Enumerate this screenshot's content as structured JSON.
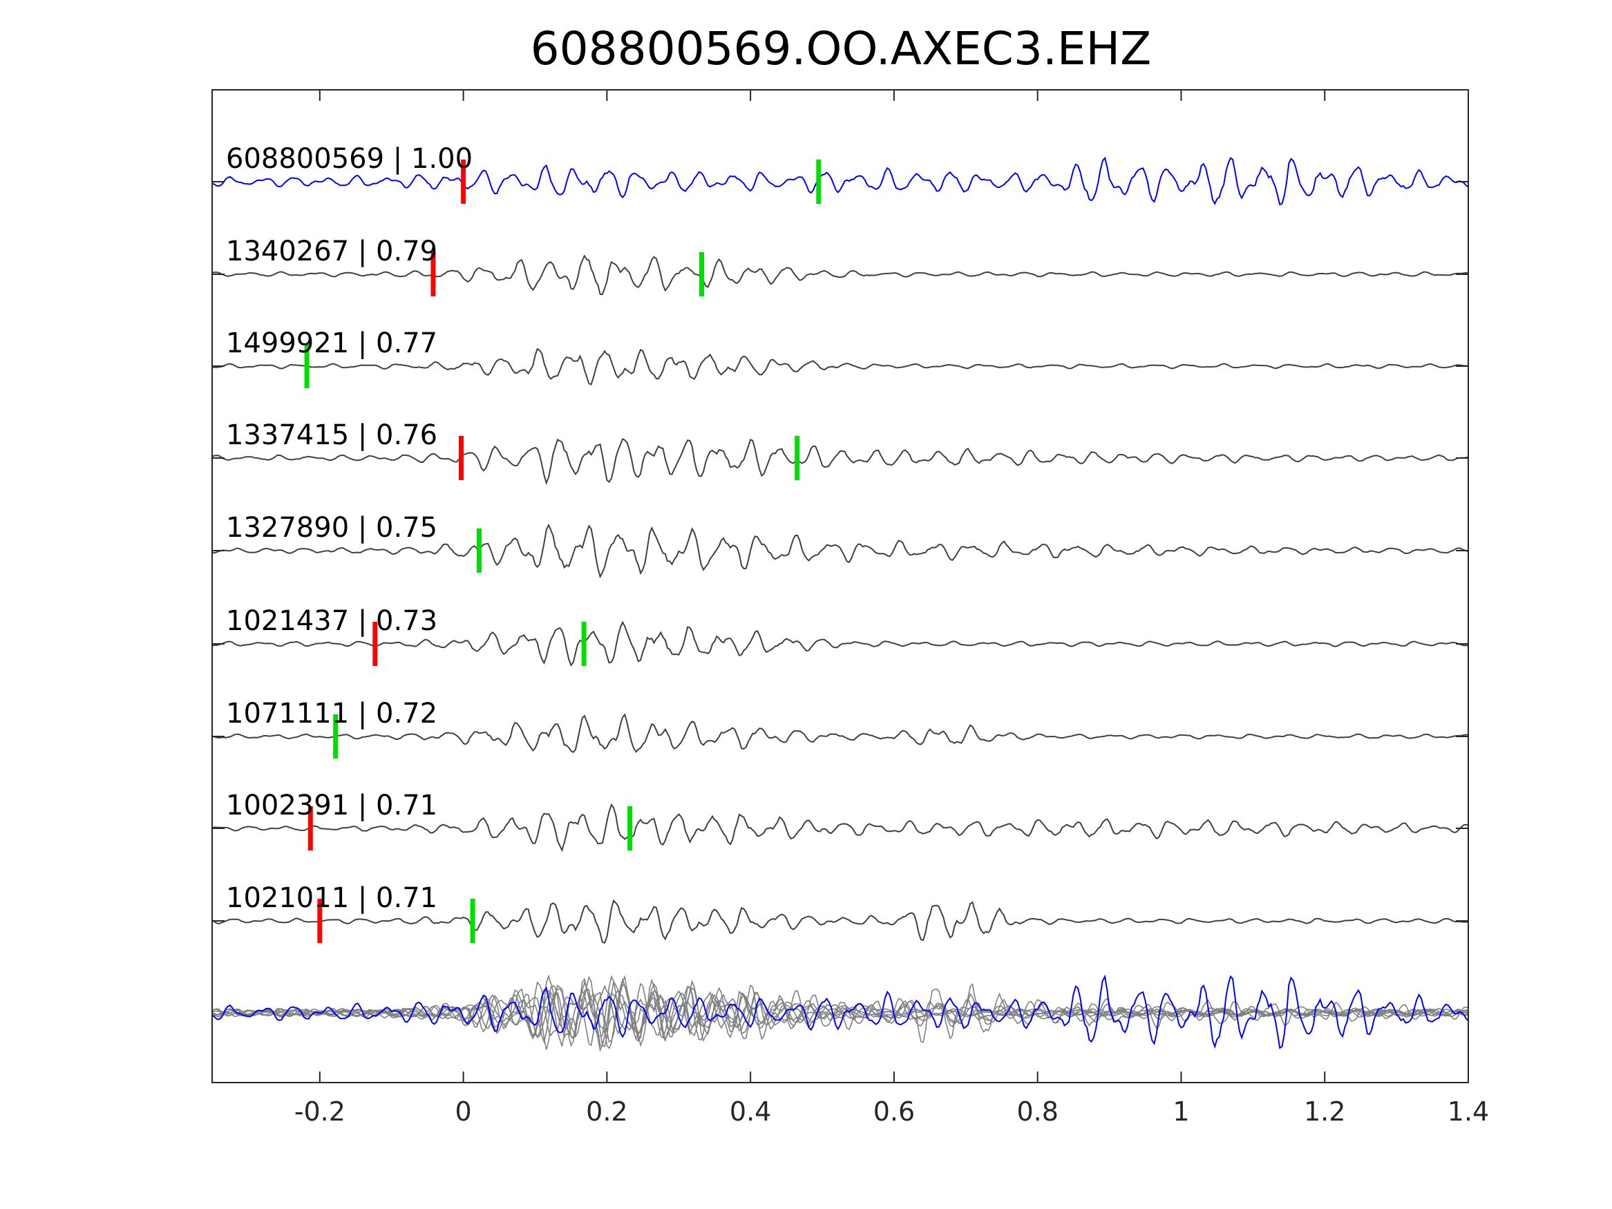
{
  "chart_data": {
    "type": "line",
    "title": "608800569.OO.AXEC3.EHZ",
    "xlabel": "",
    "ylabel": "",
    "xlim": [
      -0.35,
      1.4
    ],
    "xticks": [
      -0.2,
      0,
      0.2,
      0.4,
      0.6,
      0.8,
      1,
      1.2,
      1.4
    ],
    "xtick_labels": [
      "-0.2",
      "0",
      "0.2",
      "0.4",
      "0.6",
      "0.8",
      "1",
      "1.2",
      "1.4"
    ],
    "grid": false,
    "legend": "none",
    "colors": {
      "template": "#0000ff",
      "match": "#404040",
      "overlay": "#808080",
      "p_pick": "#ff0000",
      "s_pick": "#00dd00",
      "axis": "#262626"
    },
    "series": [
      {
        "label": "608800569 | 1.00",
        "p_pick": 0.0,
        "s_pick": 0.495,
        "is_template": true
      },
      {
        "label": "1340267 | 0.79",
        "p_pick": -0.042,
        "s_pick": 0.332
      },
      {
        "label": "1499921 | 0.77",
        "p_pick": null,
        "s_pick": -0.218
      },
      {
        "label": "1337415 | 0.76",
        "p_pick": -0.003,
        "s_pick": 0.465
      },
      {
        "label": "1327890 | 0.75",
        "p_pick": null,
        "s_pick": 0.022
      },
      {
        "label": "1021437 | 0.73",
        "p_pick": -0.123,
        "s_pick": 0.168
      },
      {
        "label": "1071111 | 0.72",
        "p_pick": null,
        "s_pick": -0.178
      },
      {
        "label": "1002391 | 0.71",
        "p_pick": -0.213,
        "s_pick": 0.232
      },
      {
        "label": "1021011 | 0.71",
        "p_pick": -0.2,
        "s_pick": 0.013
      }
    ]
  }
}
